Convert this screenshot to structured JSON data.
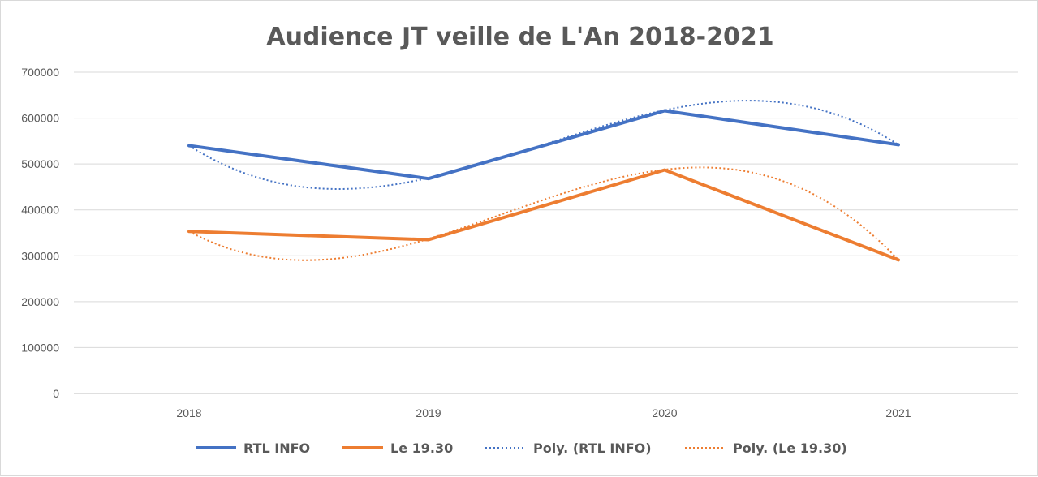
{
  "chart_data": {
    "type": "line",
    "title": "Audience JT veille de L'An 2018-2021",
    "categories": [
      "2018",
      "2019",
      "2020",
      "2021"
    ],
    "ylim": [
      0,
      700000
    ],
    "yticks": [
      "0",
      "100000",
      "200000",
      "300000",
      "400000",
      "500000",
      "600000",
      "700000"
    ],
    "grid": true,
    "legend_position": "bottom",
    "series": [
      {
        "name": "RTL INFO",
        "values": [
          540000,
          468000,
          616000,
          542000
        ],
        "color": "#4472c4",
        "style": "solid"
      },
      {
        "name": "Le 19.30",
        "values": [
          353000,
          335000,
          487000,
          291000
        ],
        "color": "#ed7d31",
        "style": "solid"
      }
    ],
    "trendlines": [
      {
        "name": "Poly. (RTL INFO)",
        "of": "RTL INFO",
        "order": 3,
        "color": "#4472c4",
        "style": "dotted"
      },
      {
        "name": "Poly. (Le 19.30)",
        "of": "Le 19.30",
        "order": 3,
        "color": "#ed7d31",
        "style": "dotted"
      }
    ]
  }
}
